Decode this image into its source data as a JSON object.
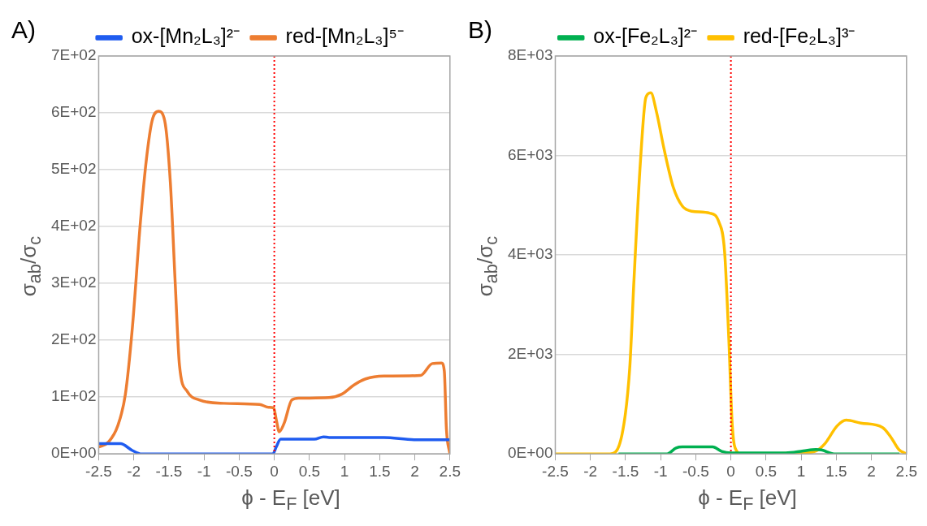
{
  "chart_data": [
    {
      "type": "line",
      "title": "A)",
      "xlabel": "ϕ - E$_{F}$ [eV]",
      "ylabel": "σ$_{ab}$/σ$_{c}$",
      "legend": "top",
      "grid": "y",
      "marker": "none",
      "line_style": "solid",
      "xlim": [
        -2.5,
        2.5
      ],
      "xticks": [
        -2.5,
        -2,
        -1.5,
        -1,
        -0.5,
        0,
        0.5,
        1,
        1.5,
        2,
        2.5
      ],
      "ylim": [
        0,
        700
      ],
      "yticks": [
        {
          "value": 0,
          "label": "0E+00"
        },
        {
          "value": 100,
          "label": "1E+02"
        },
        {
          "value": 200,
          "label": "2E+02"
        },
        {
          "value": 300,
          "label": "3E+02"
        },
        {
          "value": 400,
          "label": "4E+02"
        },
        {
          "value": 500,
          "label": "5E+02"
        },
        {
          "value": 600,
          "label": "6E+02"
        },
        {
          "value": 700,
          "label": "7E+02"
        }
      ],
      "ref_lines": [
        {
          "axis": "x",
          "value": 0,
          "color": "#ff0000",
          "line_style": "dotted"
        }
      ],
      "series": [
        {
          "name": "ox-[Mn₂L₃]²⁻",
          "color": "#1f5cf0",
          "x": [
            -2.5,
            -2.19,
            -2.02,
            -1.89,
            -0.02,
            0.03,
            0.09,
            0.57,
            0.7,
            0.78,
            1.56,
            1.99,
            2.5
          ],
          "values": [
            18,
            18,
            6,
            0,
            0,
            13,
            26,
            26,
            30,
            29,
            29,
            25,
            25
          ]
        },
        {
          "name": "red-[Mn₂L₃]⁵⁻",
          "color": "#ed7d31",
          "x": [
            -2.5,
            -2.36,
            -2.23,
            -2.12,
            -2.02,
            -1.91,
            -1.82,
            -1.74,
            -1.65,
            -1.56,
            -1.48,
            -1.41,
            -1.35,
            -1.24,
            -1.07,
            -0.72,
            -0.21,
            -0.08,
            -0.01,
            0.03,
            0.07,
            0.14,
            0.25,
            0.35,
            0.78,
            0.96,
            1.13,
            1.3,
            1.56,
            2.08,
            2.25,
            2.38,
            2.42,
            2.45,
            2.5
          ],
          "values": [
            12,
            21,
            49,
            105,
            223,
            402,
            519,
            586,
            603,
            586,
            478,
            299,
            156,
            110,
            95,
            89,
            87,
            82,
            81,
            59,
            39,
            54,
            95,
            98,
            99,
            105,
            121,
            132,
            137,
            138,
            159,
            160,
            146,
            44,
            0
          ]
        }
      ]
    },
    {
      "type": "line",
      "title": "B)",
      "xlabel": "ϕ - E$_{F}$ [eV]",
      "ylabel": "σ$_{ab}$/σ$_{c}$",
      "legend": "top",
      "grid": "y",
      "marker": "none",
      "line_style": "solid",
      "xlim": [
        -2.5,
        2.5
      ],
      "xticks": [
        -2.5,
        -2,
        -1.5,
        -1,
        -0.5,
        0,
        0.5,
        1,
        1.5,
        2,
        2.5
      ],
      "ylim": [
        0,
        8000
      ],
      "yticks": [
        {
          "value": 0,
          "label": "0E+00"
        },
        {
          "value": 2000,
          "label": "2E+03"
        },
        {
          "value": 4000,
          "label": "4E+03"
        },
        {
          "value": 6000,
          "label": "6E+03"
        },
        {
          "value": 8000,
          "label": "8E+03"
        }
      ],
      "ref_lines": [
        {
          "axis": "x",
          "value": 0,
          "color": "#ff0000",
          "line_style": "dotted"
        }
      ],
      "series": [
        {
          "name": "ox-[Fe₂L₃]²⁻",
          "color": "#00b050",
          "x": [
            -1.6,
            -0.91,
            -0.78,
            -0.69,
            -0.26,
            -0.13,
            0,
            0.78,
            1.03,
            1.21,
            1.29,
            1.47,
            2.4
          ],
          "values": [
            0,
            0,
            120,
            140,
            140,
            50,
            20,
            20,
            60,
            90,
            80,
            0,
            0
          ]
        },
        {
          "name": "red-[Fe₂L₃]³⁻",
          "color": "#ffc000",
          "x": [
            -2.5,
            -1.72,
            -1.55,
            -1.44,
            -1.38,
            -1.29,
            -1.21,
            -1.14,
            -1.06,
            -0.95,
            -0.82,
            -0.69,
            -0.56,
            -0.3,
            -0.17,
            -0.09,
            -0.03,
            0.02,
            0.09,
            0.13,
            0.99,
            1.21,
            1.34,
            1.51,
            1.64,
            1.85,
            2.16,
            2.28,
            2.39,
            2.5
          ],
          "values": [
            0,
            0,
            390,
            1730,
            3490,
            5830,
            7170,
            7260,
            6880,
            6120,
            5360,
            4980,
            4880,
            4840,
            4660,
            4070,
            2320,
            560,
            40,
            0,
            20,
            60,
            210,
            560,
            680,
            620,
            530,
            330,
            90,
            0
          ]
        }
      ]
    }
  ]
}
